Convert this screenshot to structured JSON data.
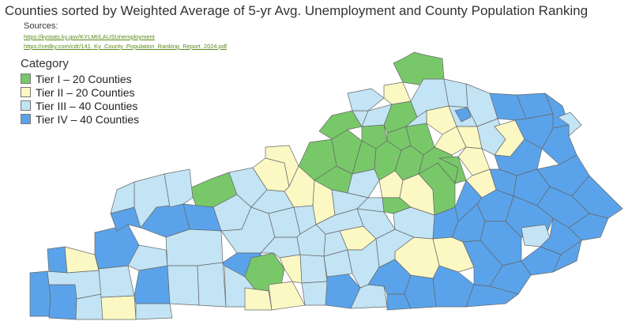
{
  "title": "Counties sorted by Weighted Average of 5-yr Avg. Unemployment and County Population Ranking",
  "sources": {
    "label": "Sources:",
    "links": [
      "https://kystats.ky.gov/KYLMI/LAUSUnemployment",
      "https://cedky.com/cdr/141_Ky_County_Population_Ranking_Report_2024.pdf"
    ]
  },
  "legend": {
    "title": "Category",
    "items": [
      {
        "label": "Tier I – 20 Counties",
        "color": "#78c86a"
      },
      {
        "label": "Tier II – 20 Counties",
        "color": "#fbf8c4"
      },
      {
        "label": "Tier III – 40 Counties",
        "color": "#c2e4f5"
      },
      {
        "label": "Tier IV – 40 Counties",
        "color": "#5aa3ea"
      }
    ]
  },
  "colors": {
    "tier1": "#78c86a",
    "tier2": "#fbf8c4",
    "tier3": "#c2e4f5",
    "tier4": "#5aa3ea",
    "border": "#666666"
  }
}
